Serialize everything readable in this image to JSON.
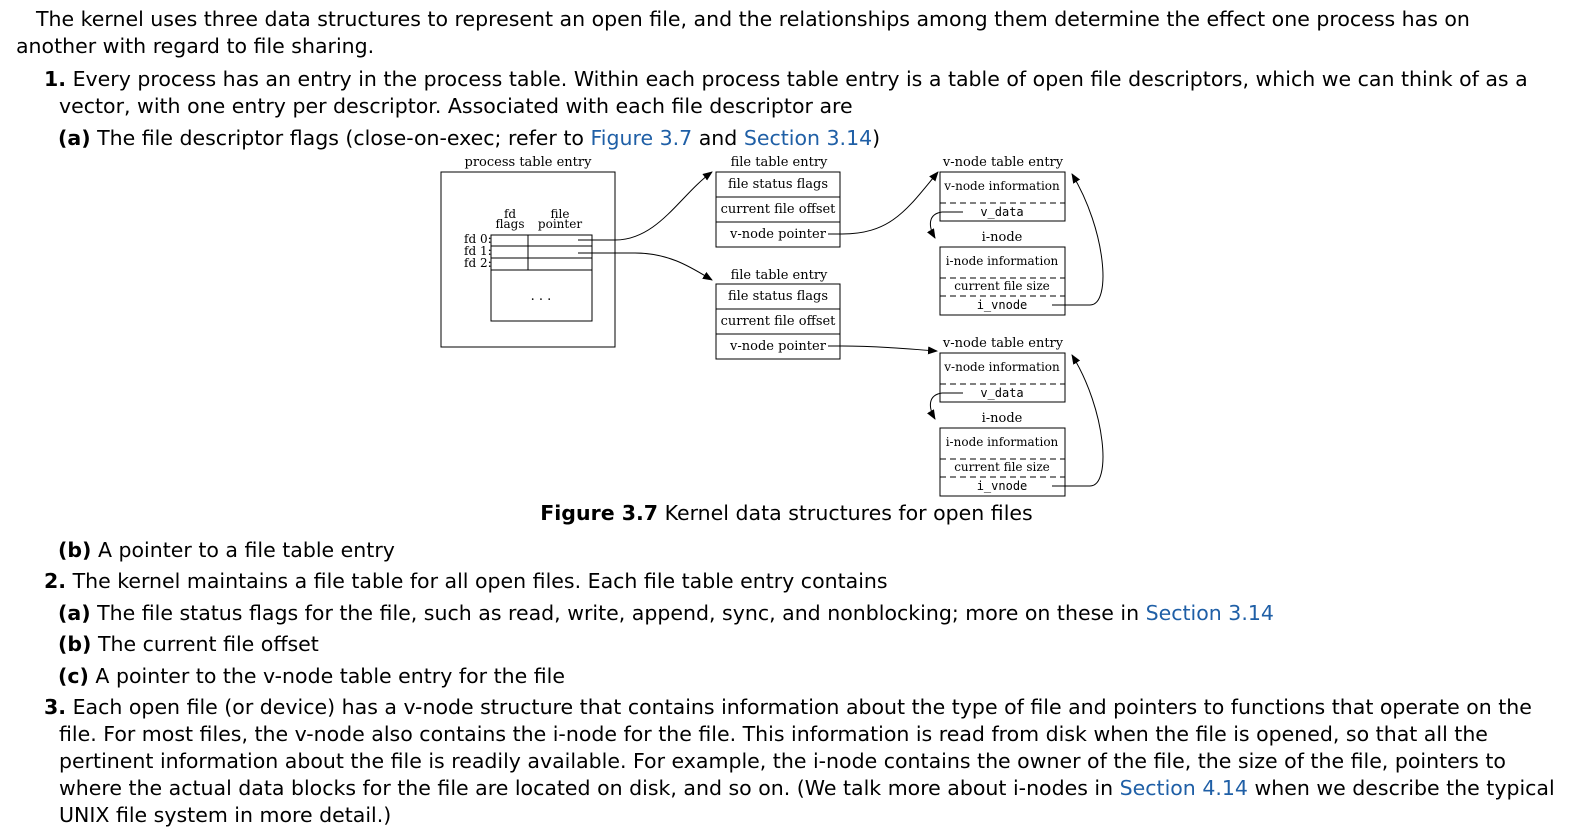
{
  "intro": "The kernel uses three data structures to represent an open file, and the relationships among them determine the effect one process has on another with regard to file sharing.",
  "item1": {
    "num": "1.",
    "text": "Every process has an entry in the process table. Within each process table entry is a table of open file descriptors, which we can think of as a vector, with one entry per descriptor. Associated with each file descriptor are",
    "a": {
      "label": "(a)",
      "text_before": "The file descriptor flags (close-on-exec; refer to",
      "link1": "Figure 3.7",
      "text_mid": "and",
      "link2": "Section 3.14",
      "text_after": ")"
    },
    "b": {
      "label": "(b)",
      "text": "A pointer to a file table entry"
    }
  },
  "figure": {
    "process_table_title": "process table entry",
    "col_fd_flags": [
      "fd",
      "flags"
    ],
    "col_file_pointer": [
      "file",
      "pointer"
    ],
    "fd_labels": [
      "fd 0:",
      "fd 1:",
      "fd 2:"
    ],
    "ellipsis": ". . .",
    "file_table_title": "file table entry",
    "file_rows": [
      "file status flags",
      "current file offset",
      "v-node pointer"
    ],
    "vnode_title": "v-node table entry",
    "vnode_info": "v-node information",
    "v_data": "v_data",
    "inode_label": "i-node",
    "inode_info": "i-node information",
    "current_file_size": "current file size",
    "i_vnode": "i_vnode",
    "caption_label": "Figure 3.7",
    "caption_text": "Kernel data structures for open files"
  },
  "item2": {
    "num": "2.",
    "text": "The kernel maintains a file table for all open files. Each file table entry contains",
    "a": {
      "label": "(a)",
      "text_before": "The file status flags for the file, such as read, write, append, sync, and nonblocking; more on these in",
      "link": "Section 3.14"
    },
    "b": {
      "label": "(b)",
      "text": "The current file offset"
    },
    "c": {
      "label": "(c)",
      "text": "A pointer to the v-node table entry for the file"
    }
  },
  "item3": {
    "num": "3.",
    "text_before": "Each open file (or device) has a v-node structure that contains information about the type of file and pointers to functions that operate on the file. For most files, the v-node also contains the i-node for the file. This information is read from disk when the file is opened, so that all the pertinent information about the file is readily available. For example, the i-node contains the owner of the file, the size of the file, pointers to where the actual data blocks for the file are located on disk, and so on. (We talk more about i-nodes in",
    "link": "Section 4.14",
    "text_after": "when we describe the typical UNIX file system in more detail.)"
  }
}
